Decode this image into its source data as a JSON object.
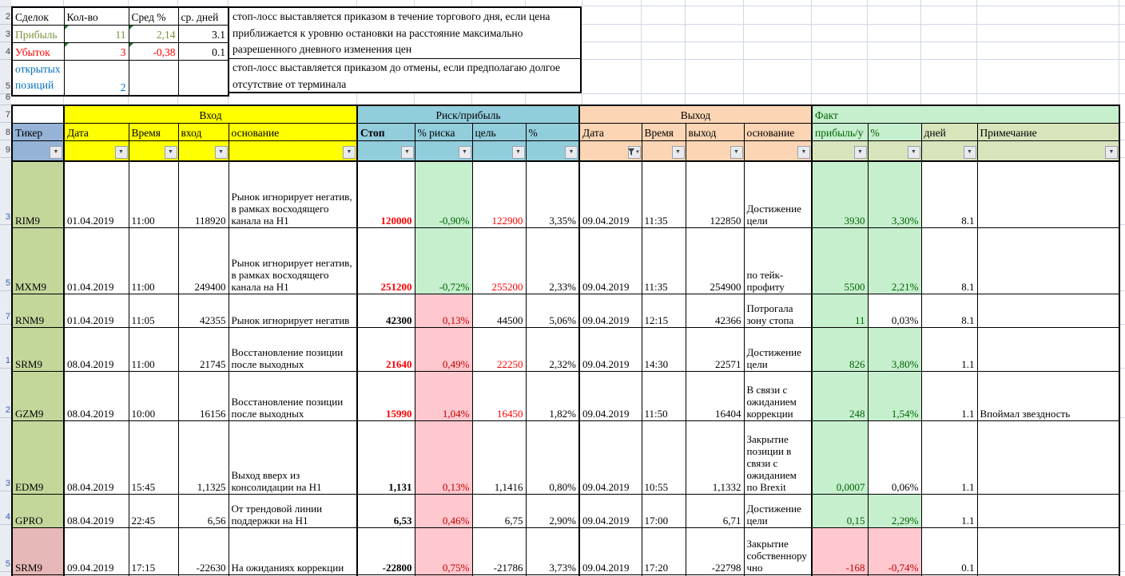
{
  "summary": {
    "headers": [
      "Сделок",
      "Кол-во",
      "Сред %",
      "ср. дней"
    ],
    "profit_row": {
      "label": "Прибыль",
      "count": "11",
      "avg_pct": "2,14",
      "avg_days": "3.1"
    },
    "loss_row": {
      "label": "Убыток",
      "count": "3",
      "avg_pct": "-0,38",
      "avg_days": "0.1"
    },
    "open_row": {
      "label": "открытых позиций",
      "count": "2"
    }
  },
  "notes": {
    "note1": "стоп-лосс выставляется приказом в течение торгового дня, если цена приближается к уровню остановки на расстояние максимально разрешенного дневного изменения цен",
    "note2": "стоп-лосс выставляется приказом до отмены, если предполагаю долгое отсутствие от терминала"
  },
  "table": {
    "groups": {
      "entry": "Вход",
      "risk": "Риск/прибыль",
      "exit": "Выход",
      "fact": "Факт"
    },
    "columns": [
      "Тикер",
      "Дата",
      "Время",
      "вход",
      "основание",
      "Стоп",
      "% риска",
      "цель",
      "%",
      "Дата",
      "Время",
      "выход",
      "основание",
      "прибыль/у",
      "%",
      "дней",
      "Примечание"
    ],
    "rows": [
      {
        "num": "3",
        "ticker": "RIM9",
        "ticker_bg": "green",
        "entry_date": "01.04.2019",
        "entry_time": "11:00",
        "entry_price": "118920",
        "entry_reason": "Рынок игнорирует негатив, в рамках восходящего канала на H1",
        "stop": "120000",
        "stop_style": "red",
        "risk_pct": "-0,90%",
        "risk_style": "good",
        "target": "122900",
        "target_style": "red",
        "target_pct": "3,35%",
        "exit_date": "09.04.2019",
        "exit_time": "11:35",
        "exit_price": "122850",
        "exit_reason": "Достижение цели",
        "profit": "3930",
        "profit_style": "good",
        "fact_pct": "3,30%",
        "fact_pct_style": "good",
        "days": "8.1",
        "note": ""
      },
      {
        "num": "5",
        "ticker": "MXM9",
        "ticker_bg": "green",
        "entry_date": "01.04.2019",
        "entry_time": "11:00",
        "entry_price": "249400",
        "entry_reason": "Рынок игнорирует негатив, в рамках восходящего канала на H1",
        "stop": "251200",
        "stop_style": "red",
        "risk_pct": "-0,72%",
        "risk_style": "good",
        "target": "255200",
        "target_style": "red",
        "target_pct": "2,33%",
        "exit_date": "09.04.2019",
        "exit_time": "11:35",
        "exit_price": "254900",
        "exit_reason": "по тейк-профиту",
        "profit": "5500",
        "profit_style": "good",
        "fact_pct": "2,21%",
        "fact_pct_style": "good",
        "days": "8.1",
        "note": ""
      },
      {
        "num": "7",
        "ticker": "RNM9",
        "ticker_bg": "green",
        "entry_date": "01.04.2019",
        "entry_time": "11:05",
        "entry_price": "42355",
        "entry_reason": "Рынок игнорирует негатив",
        "stop": "42300",
        "stop_style": "black",
        "risk_pct": "0,13%",
        "risk_style": "bad",
        "target": "44500",
        "target_style": "plain",
        "target_pct": "5,06%",
        "exit_date": "09.04.2019",
        "exit_time": "12:15",
        "exit_price": "42366",
        "exit_reason": "Потрогала зону стопа",
        "profit": "11",
        "profit_style": "good",
        "fact_pct": "0,03%",
        "fact_pct_style": "plain",
        "days": "8.1",
        "note": ""
      },
      {
        "num": "1",
        "ticker": "SRM9",
        "ticker_bg": "green",
        "entry_date": "08.04.2019",
        "entry_time": "11:00",
        "entry_price": "21745",
        "entry_reason": "Восстановление позиции после выходных",
        "stop": "21640",
        "stop_style": "red",
        "risk_pct": "0,49%",
        "risk_style": "bad",
        "target": "22250",
        "target_style": "red",
        "target_pct": "2,32%",
        "exit_date": "09.04.2019",
        "exit_time": "14:30",
        "exit_price": "22571",
        "exit_reason": "Достижение цели",
        "profit": "826",
        "profit_style": "good",
        "fact_pct": "3,80%",
        "fact_pct_style": "good",
        "days": "1.1",
        "note": ""
      },
      {
        "num": "2",
        "ticker": "GZM9",
        "ticker_bg": "green",
        "entry_date": "08.04.2019",
        "entry_time": "10:00",
        "entry_price": "16156",
        "entry_reason": "Восстановление позиции после выходных",
        "stop": "15990",
        "stop_style": "red",
        "risk_pct": "1,04%",
        "risk_style": "bad",
        "target": "16450",
        "target_style": "red",
        "target_pct": "1,82%",
        "exit_date": "09.04.2019",
        "exit_time": "11:50",
        "exit_price": "16404",
        "exit_reason": "В связи с ожиданием коррекции",
        "profit": "248",
        "profit_style": "good",
        "fact_pct": "1,54%",
        "fact_pct_style": "good",
        "days": "1.1",
        "note": "Впоймал звездность"
      },
      {
        "num": "3",
        "ticker": "EDM9",
        "ticker_bg": "green",
        "entry_date": "08.04.2019",
        "entry_time": "15:45",
        "entry_price": "1,1325",
        "entry_reason": "Выход вверх из консолидации на H1",
        "stop": "1,131",
        "stop_style": "black",
        "risk_pct": "0,13%",
        "risk_style": "bad",
        "target": "1,1416",
        "target_style": "plain",
        "target_pct": "0,80%",
        "exit_date": "09.04.2019",
        "exit_time": "10:55",
        "exit_price": "1,1332",
        "exit_reason": "Закрытие позиции в связи с ожиданием по Brexit",
        "profit": "0,0007",
        "profit_style": "good",
        "fact_pct": "0,06%",
        "fact_pct_style": "plain",
        "days": "1.1",
        "note": ""
      },
      {
        "num": "4",
        "ticker": "GPRO",
        "ticker_bg": "green",
        "entry_date": "08.04.2019",
        "entry_time": "22:45",
        "entry_price": "6,56",
        "entry_reason": "От трендовой линии поддержки на H1",
        "stop": "6,53",
        "stop_style": "black",
        "risk_pct": "0,46%",
        "risk_style": "bad",
        "target": "6,75",
        "target_style": "plain",
        "target_pct": "2,90%",
        "exit_date": "09.04.2019",
        "exit_time": "17:00",
        "exit_price": "6,71",
        "exit_reason": "Достижение цели",
        "profit": "0,15",
        "profit_style": "good",
        "fact_pct": "2,29%",
        "fact_pct_style": "good",
        "days": "1.1",
        "note": ""
      },
      {
        "num": "5",
        "ticker": "SRM9",
        "ticker_bg": "pink",
        "entry_date": "09.04.2019",
        "entry_time": "17:15",
        "entry_price": "-22630",
        "entry_reason": "На ожиданиях коррекции",
        "stop": "-22800",
        "stop_style": "black",
        "risk_pct": "0,75%",
        "risk_style": "bad",
        "target": "-21786",
        "target_style": "plain",
        "target_pct": "3,73%",
        "exit_date": "09.04.2019",
        "exit_time": "17:20",
        "exit_price": "-22798",
        "exit_reason": "Закрытие собственноручно",
        "profit": "-168",
        "profit_style": "bad",
        "fact_pct": "-0,74%",
        "fact_pct_style": "bad",
        "days": "0.1",
        "note": ""
      }
    ]
  },
  "row_headers": {
    "top": [
      "2",
      "3",
      "4",
      "5",
      "6",
      "7",
      "8",
      "9"
    ],
    "data": [
      "3",
      "5",
      "7",
      "1",
      "2",
      "3",
      "4",
      "5"
    ]
  }
}
